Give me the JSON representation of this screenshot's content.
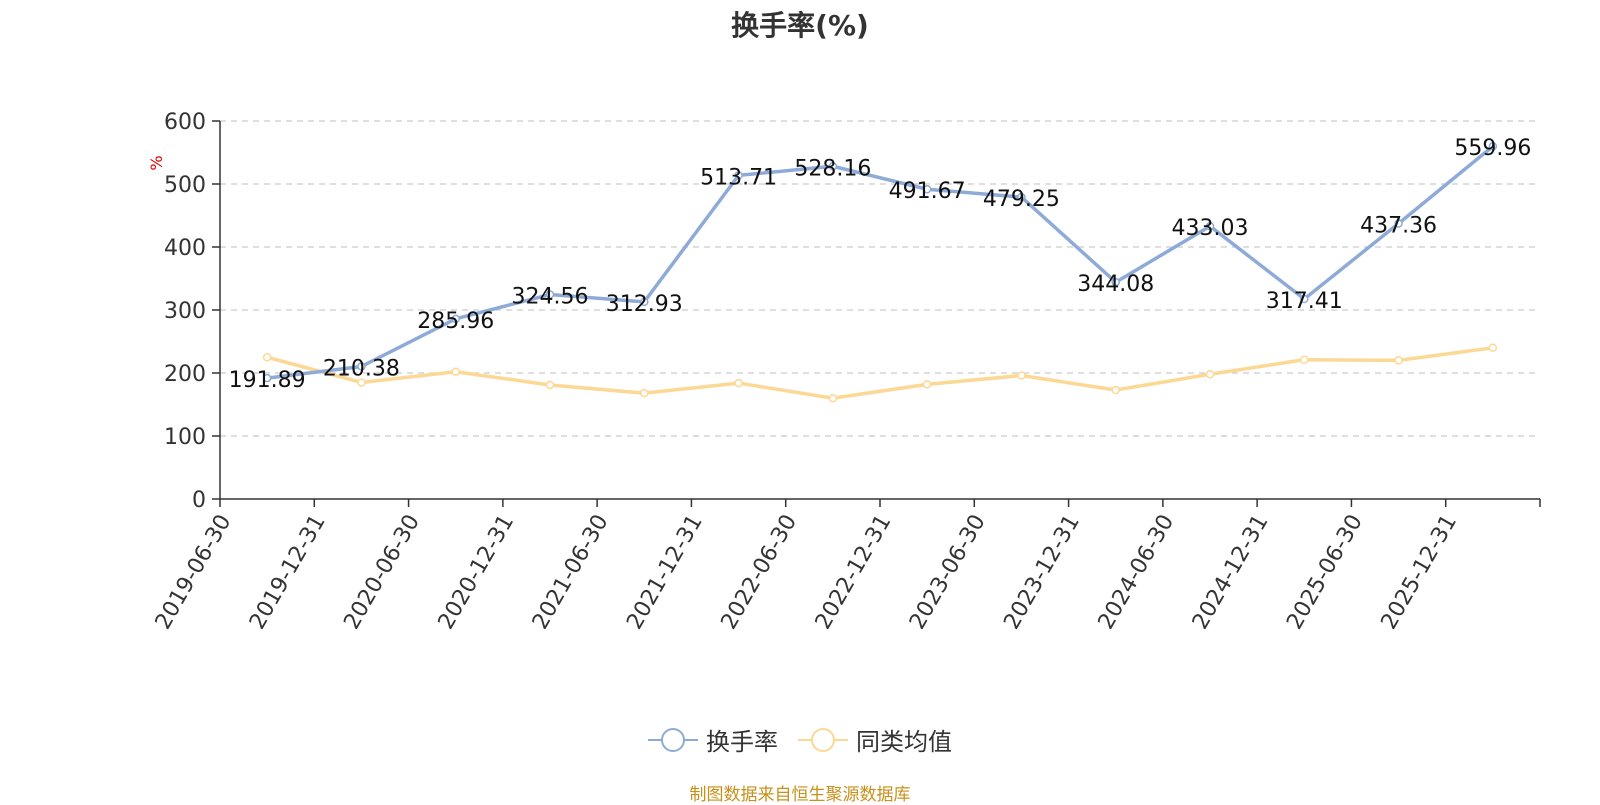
{
  "chart_data": {
    "type": "line",
    "title": "换手率(%)",
    "ylabel": "%",
    "ylim": [
      0,
      600
    ],
    "yticks": [
      0,
      100,
      200,
      300,
      400,
      500,
      600
    ],
    "categories": [
      "2019-06-30",
      "2019-12-31",
      "2020-06-30",
      "2020-12-31",
      "2021-06-30",
      "2021-12-31",
      "2022-06-30",
      "2022-12-31",
      "2023-06-30",
      "2023-12-31",
      "2024-06-30",
      "2024-12-31",
      "2025-06-30",
      "2025-12-31"
    ],
    "series": [
      {
        "name": "换手率",
        "color": "#8eabd8",
        "show_labels": true,
        "values": [
          191.89,
          210.38,
          285.96,
          324.56,
          312.93,
          513.71,
          528.16,
          491.67,
          479.25,
          344.08,
          433.03,
          317.41,
          437.36,
          559.96
        ]
      },
      {
        "name": "同类均值",
        "color": "#fcd894",
        "show_labels": false,
        "values": [
          225,
          185,
          202,
          181,
          168,
          184,
          160,
          182,
          196,
          173,
          198,
          221,
          220,
          240
        ]
      }
    ],
    "grid": true,
    "legend_position": "bottom"
  },
  "footer": {
    "source": "制图数据来自恒生聚源数据库"
  }
}
